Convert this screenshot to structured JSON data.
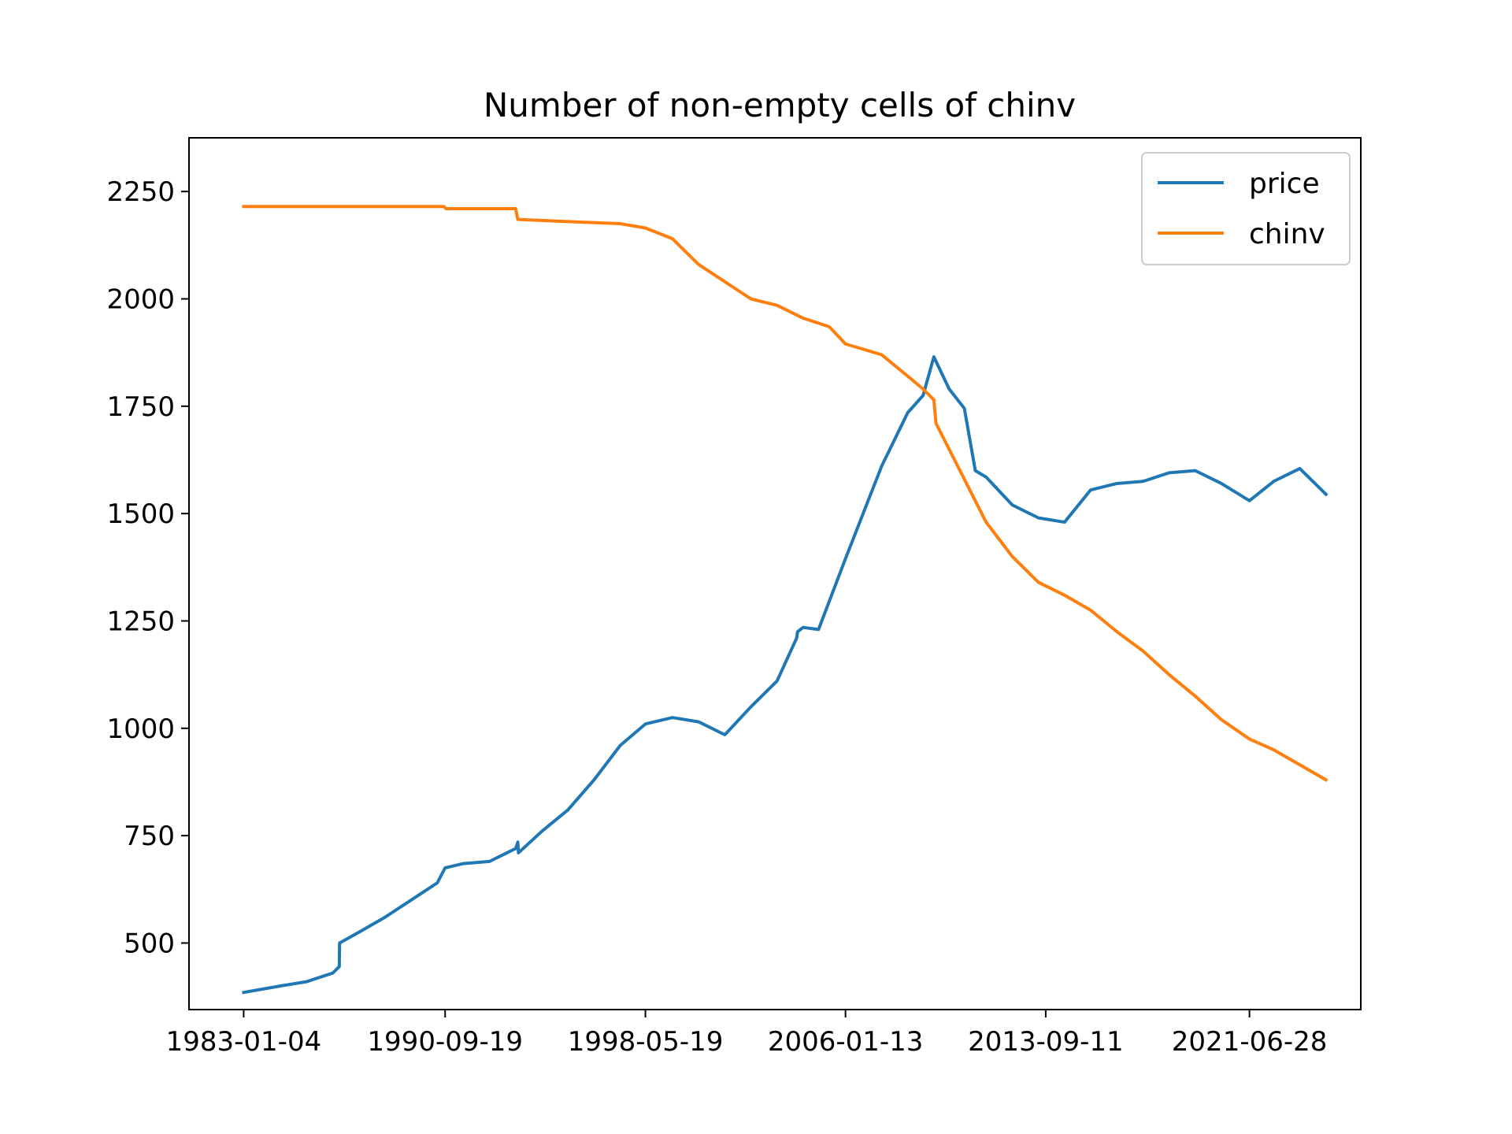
{
  "chart_data": {
    "type": "line",
    "title": "Number of non-empty cells of chinv",
    "xlabel": "",
    "ylabel": "",
    "x_ticks": [
      "1983-01-04",
      "1990-09-19",
      "1998-05-19",
      "2006-01-13",
      "2013-09-11",
      "2021-06-28"
    ],
    "y_ticks": [
      500,
      750,
      1000,
      1250,
      1500,
      1750,
      2000,
      2250
    ],
    "xlim": [
      "1980-12-01",
      "2025-10-01"
    ],
    "ylim": [
      345,
      2375
    ],
    "grid": false,
    "legend_position": "top-right",
    "series": [
      {
        "name": "price",
        "color": "#1f77b4",
        "x": [
          "1983-01-04",
          "1984-06-01",
          "1985-06-01",
          "1986-06-01",
          "1986-09-01",
          "1986-09-05",
          "1987-06-01",
          "1988-06-01",
          "1989-06-01",
          "1990-06-01",
          "1990-09-19",
          "1991-06-01",
          "1992-06-01",
          "1993-06-01",
          "1993-07-01",
          "1993-07-10",
          "1994-06-01",
          "1995-06-01",
          "1996-06-01",
          "1997-06-01",
          "1998-05-19",
          "1999-06-01",
          "2000-06-01",
          "2001-06-01",
          "2001-07-01",
          "2002-06-01",
          "2003-06-01",
          "2004-03-01",
          "2004-03-15",
          "2004-06-01",
          "2005-01-01",
          "2006-01-13",
          "2007-06-01",
          "2008-06-01",
          "2009-01-01",
          "2009-06-01",
          "2010-01-01",
          "2010-08-01",
          "2011-01-01",
          "2011-06-01",
          "2012-06-01",
          "2013-06-01",
          "2014-06-01",
          "2015-06-01",
          "2016-06-01",
          "2017-06-01",
          "2018-06-01",
          "2019-06-01",
          "2020-06-01",
          "2021-06-28",
          "2022-06-01",
          "2023-06-01",
          "2024-06-01"
        ],
        "values": [
          385,
          400,
          410,
          430,
          445,
          500,
          525,
          560,
          600,
          640,
          675,
          685,
          690,
          720,
          735,
          710,
          760,
          810,
          880,
          960,
          1010,
          1025,
          1015,
          985,
          990,
          1050,
          1110,
          1210,
          1225,
          1235,
          1230,
          1395,
          1610,
          1735,
          1775,
          1865,
          1790,
          1745,
          1600,
          1585,
          1520,
          1490,
          1480,
          1555,
          1570,
          1575,
          1595,
          1600,
          1570,
          1530,
          1575,
          1605,
          1545
        ]
      },
      {
        "name": "chinv",
        "color": "#ff7f0e",
        "x": [
          "1983-01-04",
          "1990-09-01",
          "1990-10-01",
          "1993-06-01",
          "1993-07-01",
          "1995-06-01",
          "1997-06-01",
          "1998-05-19",
          "1999-06-01",
          "2000-06-01",
          "2001-06-01",
          "2002-06-01",
          "2003-06-01",
          "2004-06-01",
          "2005-06-01",
          "2006-01-13",
          "2007-06-01",
          "2008-06-01",
          "2009-01-01",
          "2009-06-01",
          "2009-07-01",
          "2010-06-01",
          "2011-06-01",
          "2012-06-01",
          "2013-06-01",
          "2014-06-01",
          "2015-06-01",
          "2016-06-01",
          "2017-06-01",
          "2018-06-01",
          "2019-06-01",
          "2020-06-01",
          "2021-06-28",
          "2022-06-01",
          "2023-06-01",
          "2024-06-01"
        ],
        "values": [
          2215,
          2215,
          2210,
          2210,
          2185,
          2180,
          2175,
          2165,
          2140,
          2080,
          2040,
          2000,
          1985,
          1955,
          1935,
          1895,
          1870,
          1820,
          1790,
          1765,
          1710,
          1600,
          1480,
          1400,
          1340,
          1310,
          1275,
          1225,
          1180,
          1125,
          1075,
          1020,
          975,
          950,
          915,
          880
        ]
      }
    ]
  }
}
